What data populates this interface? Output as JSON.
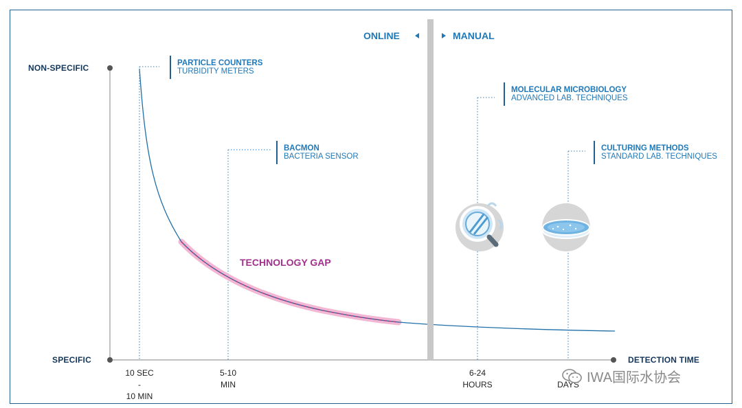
{
  "chart_data": {
    "type": "line",
    "y_axis": {
      "top_label": "NON-SPECIFIC",
      "bottom_label": "SPECIFIC"
    },
    "x_axis": {
      "label": "DETECTION TIME",
      "ticks": [
        "10 SEC\n-\n10 MIN",
        "5-10\nMIN",
        "6-24\nHOURS",
        "DAYS"
      ]
    },
    "regions": {
      "left": "ONLINE",
      "right": "MANUAL"
    },
    "annotations": [
      {
        "title": "PARTICLE COUNTERS",
        "subtitle": "TURBIDITY METERS"
      },
      {
        "title": "BACMON",
        "subtitle": "BACTERIA SENSOR"
      },
      {
        "title": "MOLECULAR MICROBIOLOGY",
        "subtitle": "ADVANCED LAB. TECHNIQUES"
      },
      {
        "title": "CULTURING METHODS",
        "subtitle": "STANDARD LAB. TECHNIQUES"
      }
    ],
    "gap_label": "TECHNOLOGY GAP",
    "colors": {
      "curve": "#1f6fa8",
      "gap_band": "#f3b6d3",
      "gap_dash": "#b23a7a",
      "divider": "#c8c8c8",
      "axis": "#9a9a9a",
      "label_blue": "#1f78b8",
      "label_navy": "#13365a",
      "gap_text": "#a0308c"
    },
    "icons": [
      "microscope-slide-magnifier-icon",
      "petri-dish-icon"
    ]
  },
  "watermark": "IWA国际水协会"
}
